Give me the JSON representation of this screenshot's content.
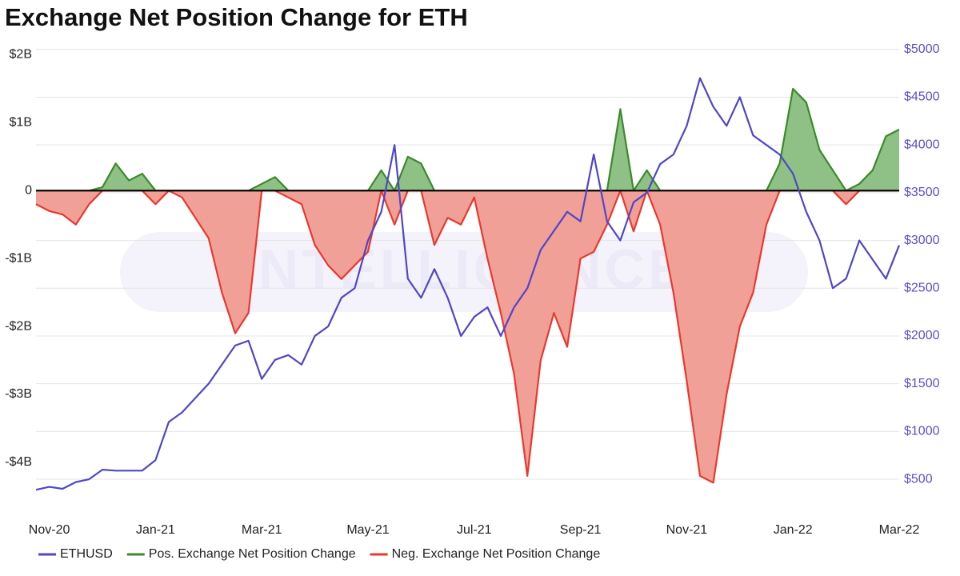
{
  "chart_data": {
    "type": "area-line",
    "title": "Exchange Net Position Change for ETH",
    "watermark": "INTELLIGENCE",
    "categories": [
      null,
      "Nov-20",
      null,
      null,
      null,
      null,
      null,
      null,
      null,
      "Jan-21",
      null,
      null,
      null,
      null,
      null,
      null,
      null,
      "Mar-21",
      null,
      null,
      null,
      null,
      null,
      null,
      null,
      "May-21",
      null,
      null,
      null,
      null,
      null,
      null,
      null,
      "Jul-21",
      null,
      null,
      null,
      null,
      null,
      null,
      null,
      "Sep-21",
      null,
      null,
      null,
      null,
      null,
      null,
      null,
      "Nov-21",
      null,
      null,
      null,
      null,
      null,
      null,
      null,
      "Jan-22",
      null,
      null,
      null,
      null,
      null,
      null,
      null,
      "Mar-22"
    ],
    "series": [
      {
        "name": "ETHUSD",
        "color": "#4f46c8",
        "axis": "y2",
        "values": [
          390,
          420,
          400,
          470,
          500,
          600,
          590,
          590,
          590,
          700,
          1100,
          1200,
          1350,
          1500,
          1700,
          1900,
          1950,
          1550,
          1750,
          1800,
          1700,
          2000,
          2100,
          2400,
          2500,
          3000,
          3300,
          4000,
          2600,
          2400,
          2700,
          2400,
          2000,
          2200,
          2300,
          2000,
          2300,
          2500,
          2900,
          3100,
          3300,
          3200,
          3900,
          3200,
          3000,
          3400,
          3500,
          3800,
          3900,
          4200,
          4700,
          4400,
          4200,
          4500,
          4100,
          4000,
          3900,
          3700,
          3300,
          3000,
          2500,
          2600,
          3000,
          2800,
          2600,
          2950
        ]
      },
      {
        "name": "Pos. Exchange Net Position Change",
        "color": "#3a8a2a",
        "fill": "#8fc085",
        "values": [
          0,
          0,
          0,
          0,
          0,
          0.05,
          0.4,
          0.15,
          0.25,
          0,
          0,
          0,
          0,
          0,
          0,
          0,
          0,
          0.1,
          0.2,
          0,
          0,
          0,
          0,
          0,
          0,
          0,
          0.3,
          0,
          0.5,
          0.4,
          0,
          0,
          0,
          0,
          0,
          0,
          0,
          0,
          0,
          0,
          0,
          0,
          0,
          0,
          1.2,
          0,
          0.3,
          0,
          0,
          0,
          0,
          0,
          0,
          0,
          0,
          0,
          0.4,
          1.5,
          1.3,
          0.6,
          0.3,
          0,
          0.1,
          0.3,
          0.8,
          0.9
        ]
      },
      {
        "name": "Neg. Exchange Net Position Change",
        "color": "#e8392e",
        "fill": "#f0a097",
        "values": [
          -0.2,
          -0.3,
          -0.35,
          -0.5,
          -0.2,
          0,
          0,
          0,
          0,
          -0.2,
          0,
          -0.1,
          -0.4,
          -0.7,
          -1.5,
          -2.1,
          -1.8,
          0,
          0,
          -0.1,
          -0.2,
          -0.8,
          -1.1,
          -1.3,
          -1.1,
          -0.9,
          0,
          -0.5,
          0,
          0,
          -0.8,
          -0.4,
          -0.5,
          -0.1,
          -1.0,
          -1.8,
          -2.7,
          -4.2,
          -2.5,
          -1.8,
          -2.3,
          -1.0,
          -0.9,
          -0.5,
          0,
          -0.6,
          0,
          -0.5,
          -1.5,
          -2.8,
          -4.2,
          -4.3,
          -3.0,
          -2.0,
          -1.5,
          -0.5,
          0,
          0,
          0,
          0,
          0,
          -0.2,
          0,
          0,
          0,
          0
        ]
      }
    ],
    "ylim": [
      -4.79,
      2.1
    ],
    "yticks": [
      {
        "value": 2,
        "label": "$2B"
      },
      {
        "value": 1,
        "label": "$1B"
      },
      0,
      {
        "value": -1,
        "label": "-$1B"
      },
      {
        "value": -2,
        "label": "-$2B"
      },
      {
        "value": -3,
        "label": "-$3B"
      },
      {
        "value": -4,
        "label": "-$4B"
      }
    ],
    "y2lim": [
      115,
      5015
    ],
    "y2ticks": [
      {
        "value": 500,
        "label": "$500"
      },
      {
        "value": 1000,
        "label": "$1000"
      },
      {
        "value": 1500,
        "label": "$1500"
      },
      {
        "value": 2000,
        "label": "$2000"
      },
      {
        "value": 2500,
        "label": "$2500"
      },
      {
        "value": 3000,
        "label": "$3000"
      },
      {
        "value": 3500,
        "label": "$3500"
      },
      {
        "value": 4000,
        "label": "$4000"
      },
      {
        "value": 4500,
        "label": "$4500"
      },
      {
        "value": 5000,
        "label": "$5000"
      }
    ],
    "grid": true,
    "legend": "bottom"
  }
}
